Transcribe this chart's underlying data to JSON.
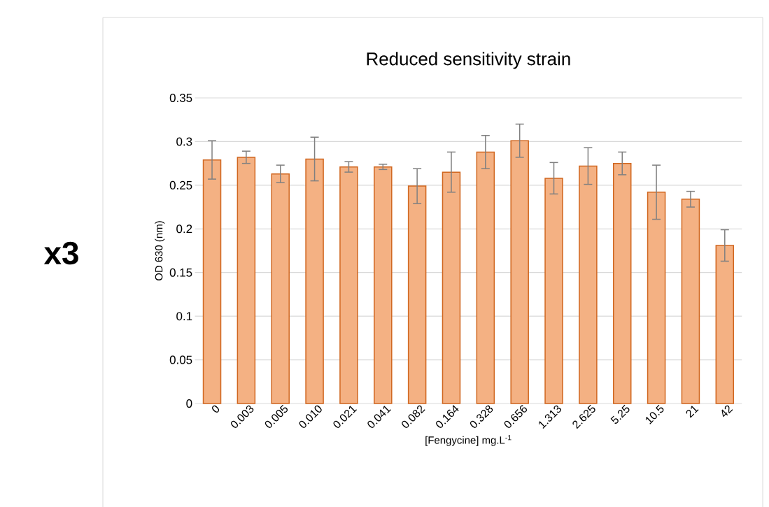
{
  "chart_data": {
    "type": "bar",
    "title": "Reduced sensitivity strain",
    "xlabel": "[Fengycine] mg.L$^{-1}$",
    "ylabel": "OD 630 (nm)",
    "categories": [
      "0",
      "0.003",
      "0.005",
      "0.010",
      "0.021",
      "0.041",
      "0.082",
      "0.164",
      "0.328",
      "0.656",
      "1.313",
      "2.625",
      "5.25",
      "10.5",
      "21",
      "42"
    ],
    "values": [
      0.279,
      0.282,
      0.263,
      0.28,
      0.271,
      0.271,
      0.249,
      0.265,
      0.288,
      0.301,
      0.258,
      0.272,
      0.275,
      0.242,
      0.234,
      0.181
    ],
    "errors": [
      0.022,
      0.007,
      0.01,
      0.025,
      0.006,
      0.003,
      0.02,
      0.023,
      0.019,
      0.019,
      0.018,
      0.021,
      0.013,
      0.031,
      0.009,
      0.018
    ],
    "color": "#f4b183",
    "ylim": [
      0,
      0.35
    ],
    "yticks": [
      0,
      0.05,
      0.1,
      0.15,
      0.2,
      0.25,
      0.3,
      0.35
    ],
    "grid": "y",
    "annotations": [
      "x3"
    ]
  }
}
